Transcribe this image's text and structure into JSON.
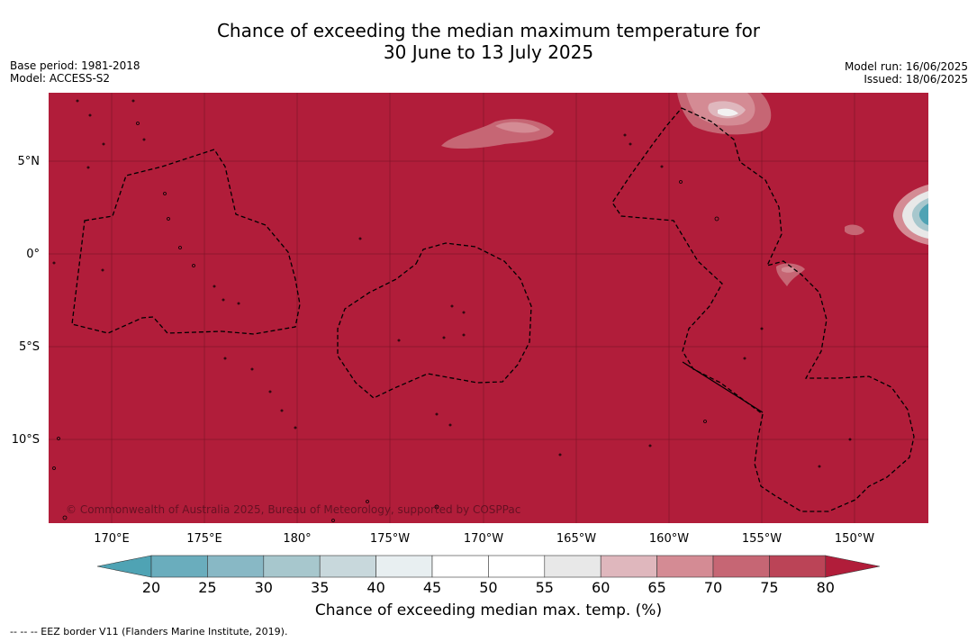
{
  "header": {
    "title_line1": "Chance of exceeding the median maximum temperature for",
    "title_line2": "30 June to 13 July 2025",
    "base_period": "Base period: 1981-2018",
    "model": "Model: ACCESS-S2",
    "model_run": "Model run: 16/06/2025",
    "issued": "Issued: 18/06/2025"
  },
  "map": {
    "credit": "© Commonwealth of Australia 2025, Bureau of Meteorology, supported by COSPPac",
    "background_color": "#b11d3a",
    "lon_labels": [
      "170°E",
      "175°E",
      "180°",
      "175°W",
      "170°W",
      "165°W",
      "160°W",
      "155°W",
      "150°W"
    ],
    "lat_labels": [
      "5°N",
      "0°",
      "5°S",
      "10°S"
    ]
  },
  "colorbar": {
    "title": "Chance of exceeding median max. temp. (%)",
    "ticks": [
      "20",
      "25",
      "30",
      "35",
      "40",
      "45",
      "50",
      "55",
      "60",
      "65",
      "70",
      "75",
      "80"
    ],
    "colors": [
      "#4fa3b4",
      "#6aadbd",
      "#88b8c5",
      "#a7c7cd",
      "#c8d8dc",
      "#e8eff1",
      "#ffffff",
      "#ffffff",
      "#e8e8e8",
      "#dfb7bd",
      "#d48b94",
      "#c66674",
      "#bb4457",
      "#b11d3a"
    ]
  },
  "footnote": "--  --  -- EEZ border V11 (Flanders Marine Institute, 2019)."
}
